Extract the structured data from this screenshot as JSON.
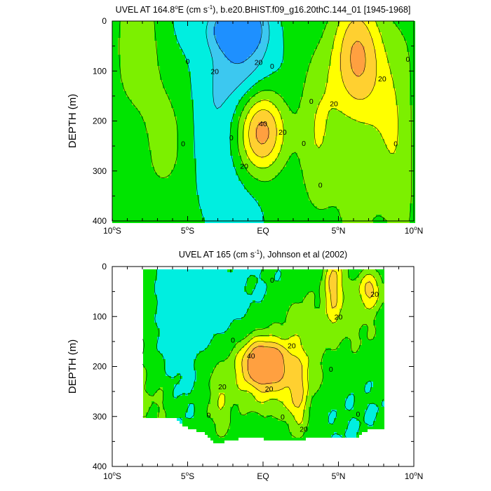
{
  "chart_data": [
    {
      "type": "heatmap",
      "title": "UVEL AT 164.8°E (cm s⁻¹), b.e20.BHIST.f09_g16.20thC.144_01 [1945-1968]",
      "title_parts": {
        "pre": "UVEL AT 164.8",
        "deg": "o",
        "mid": "E (cm s",
        "sup": "-1",
        "post": "), b.e20.BHIST.f09_g16.20thC.144_01 [1945-1968]"
      },
      "ylabel": "DEPTH (m)",
      "x_ticks": [
        {
          "value": -10,
          "num": "10",
          "sup": "o",
          "hemi": "S"
        },
        {
          "value": -5,
          "num": "5",
          "sup": "o",
          "hemi": "S"
        },
        {
          "value": 0,
          "num": "EQ",
          "sup": "",
          "hemi": ""
        },
        {
          "value": 5,
          "num": "5",
          "sup": "o",
          "hemi": "N"
        },
        {
          "value": 10,
          "num": "10",
          "sup": "o",
          "hemi": "N"
        }
      ],
      "y_ticks": [
        "0",
        "100",
        "200",
        "300",
        "400"
      ],
      "xlim": [
        -10,
        10
      ],
      "ylim": [
        0,
        400
      ],
      "levels": [
        -20,
        -10,
        0,
        10,
        20,
        30,
        40
      ],
      "colors": [
        "#1e90ff",
        "#3cc8f0",
        "#00eee0",
        "#00e400",
        "#7cf000",
        "#ffff00",
        "#ffd030",
        "#ffa040"
      ],
      "highs": [
        {
          "x": 0.0,
          "depth": 220,
          "value": 45
        },
        {
          "x": 6.3,
          "depth": 75,
          "value": 33
        }
      ],
      "lows": [
        {
          "x": -1.8,
          "depth": 15,
          "value": -22
        },
        {
          "x": -1.6,
          "depth": 70,
          "value": -12
        }
      ],
      "neutral": [
        {
          "x": -8.3,
          "depth": 60,
          "value": 12
        },
        {
          "x": -6.0,
          "depth": 300,
          "value": 8
        },
        {
          "x": 3.5,
          "depth": 220,
          "value": 12
        },
        {
          "x": 8.7,
          "depth": 250,
          "value": 12
        }
      ],
      "contour_labels": [
        {
          "text": "0",
          "x": -5.0,
          "depth": 80
        },
        {
          "text": "20",
          "x": -3.2,
          "depth": 100
        },
        {
          "text": "20",
          "x": -0.3,
          "depth": 82
        },
        {
          "text": "0",
          "x": 0.6,
          "depth": 90
        },
        {
          "text": "0",
          "x": -5.3,
          "depth": 245
        },
        {
          "text": "0",
          "x": -2.1,
          "depth": 233
        },
        {
          "text": "40",
          "x": 0.0,
          "depth": 205
        },
        {
          "text": "20",
          "x": 1.3,
          "depth": 222
        },
        {
          "text": "20",
          "x": -1.25,
          "depth": 290
        },
        {
          "text": "0",
          "x": 2.7,
          "depth": 244
        },
        {
          "text": "0",
          "x": 3.2,
          "depth": 160
        },
        {
          "text": "0",
          "x": 3.8,
          "depth": 328
        },
        {
          "text": "20",
          "x": 4.7,
          "depth": 165
        },
        {
          "text": "20",
          "x": 7.9,
          "depth": 115
        },
        {
          "text": "0",
          "x": 9.6,
          "depth": 76
        },
        {
          "text": "0",
          "x": 8.8,
          "depth": 245
        }
      ]
    },
    {
      "type": "heatmap",
      "title": "UVEL AT 165 (cm s⁻¹), Johnson et al (2002)",
      "title_parts": {
        "pre": "UVEL AT 165 (cm s",
        "sup": "-1",
        "post": "), Johnson et al (2002)"
      },
      "ylabel": "DEPTH (m)",
      "x_ticks": [
        {
          "value": -10,
          "num": "10",
          "sup": "o",
          "hemi": "S"
        },
        {
          "value": -5,
          "num": "5",
          "sup": "o",
          "hemi": "S"
        },
        {
          "value": 0,
          "num": "EQ",
          "sup": "",
          "hemi": ""
        },
        {
          "value": 5,
          "num": "5",
          "sup": "o",
          "hemi": "N"
        },
        {
          "value": 10,
          "num": "10",
          "sup": "o",
          "hemi": "N"
        }
      ],
      "y_ticks": [
        "0",
        "100",
        "200",
        "300",
        "400"
      ],
      "xlim": [
        -10,
        10
      ],
      "ylim": [
        0,
        400
      ],
      "levels": [
        -20,
        -10,
        0,
        10,
        20,
        30,
        40
      ],
      "colors": [
        "#1e90ff",
        "#3cc8f0",
        "#00eee0",
        "#00e400",
        "#7cf000",
        "#ffff00",
        "#ffd030",
        "#ffa040"
      ],
      "data_extent": {
        "x": [
          -8.0,
          8.0
        ],
        "depth_top": 5,
        "bottom_profile": [
          [
            -8.0,
            305
          ],
          [
            -5.8,
            305
          ],
          [
            -5.2,
            320
          ],
          [
            -3.8,
            335
          ],
          [
            -3.2,
            355
          ],
          [
            -1.5,
            345
          ],
          [
            0.0,
            345
          ],
          [
            1.5,
            350
          ],
          [
            3.0,
            345
          ],
          [
            5.0,
            345
          ],
          [
            6.3,
            340
          ],
          [
            7.0,
            325
          ],
          [
            8.0,
            325
          ]
        ]
      },
      "highs": [
        {
          "x": 0.0,
          "depth": 190,
          "value": 42
        },
        {
          "x": 4.7,
          "depth": 30,
          "value": 28
        },
        {
          "x": 7.1,
          "depth": 45,
          "value": 26
        }
      ],
      "neutral": [
        {
          "x": -6.5,
          "depth": 280,
          "value": 10
        },
        {
          "x": -3.5,
          "depth": 300,
          "value": 12
        },
        {
          "x": 2.3,
          "depth": 270,
          "value": 12
        }
      ],
      "contour_labels": [
        {
          "text": "0",
          "x": 0.6,
          "depth": 27
        },
        {
          "text": "20",
          "x": 7.4,
          "depth": 55
        },
        {
          "text": "20",
          "x": 5.0,
          "depth": 100
        },
        {
          "text": "0",
          "x": -2.0,
          "depth": 147
        },
        {
          "text": "40",
          "x": -0.8,
          "depth": 178
        },
        {
          "text": "20",
          "x": 1.9,
          "depth": 158
        },
        {
          "text": "0",
          "x": 4.5,
          "depth": 205
        },
        {
          "text": "20",
          "x": -2.7,
          "depth": 240
        },
        {
          "text": "20",
          "x": 0.4,
          "depth": 244
        },
        {
          "text": "0",
          "x": -3.6,
          "depth": 297
        },
        {
          "text": "0",
          "x": 1.3,
          "depth": 300
        },
        {
          "text": "20",
          "x": 2.7,
          "depth": 325
        },
        {
          "text": "0",
          "x": 6.3,
          "depth": 295
        }
      ]
    }
  ]
}
